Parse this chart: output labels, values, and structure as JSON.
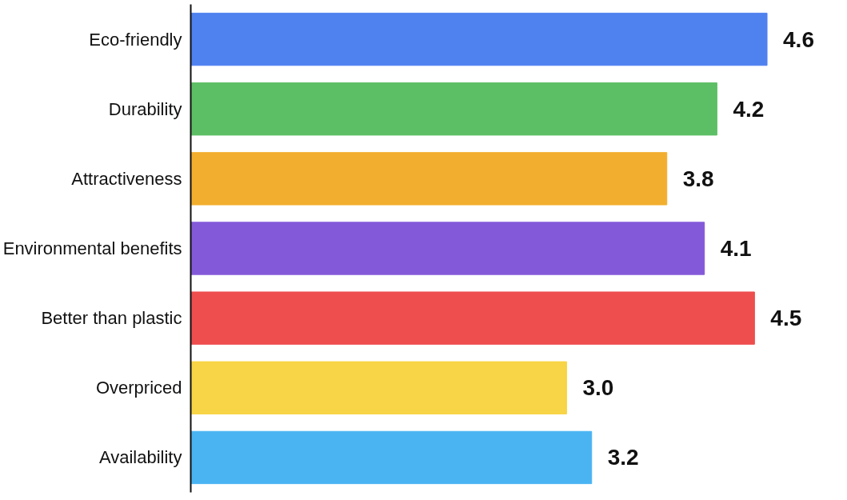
{
  "chart_data": {
    "type": "bar",
    "orientation": "horizontal",
    "categories": [
      "Eco-friendly",
      "Durability",
      "Attractiveness",
      "Environmental benefits",
      "Better than plastic",
      "Overpriced",
      "Availability"
    ],
    "values": [
      4.6,
      4.2,
      3.8,
      4.1,
      4.5,
      3.0,
      3.2
    ],
    "colors": [
      "#4f81ef",
      "#5dbf65",
      "#f2ae2e",
      "#8459d9",
      "#ef4e4e",
      "#f7d546",
      "#4ab4f3"
    ],
    "value_labels": [
      "4.6",
      "4.2",
      "3.8",
      "4.1",
      "4.5",
      "3.0",
      "3.2"
    ],
    "tick_labels": "y",
    "grid": false
  }
}
